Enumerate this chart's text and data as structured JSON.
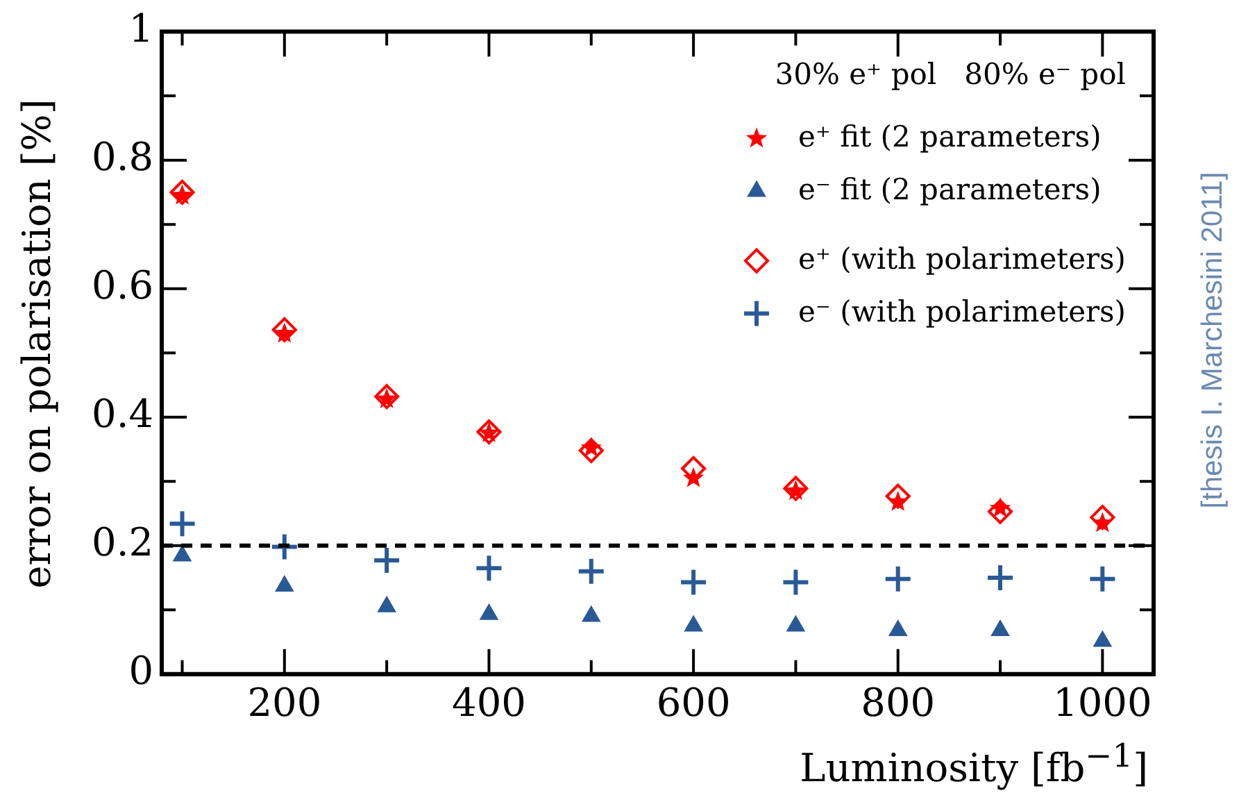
{
  "chart_data": {
    "type": "scatter",
    "xlabel": "Luminosity [fb$^{−1}$]",
    "ylabel": "error on polarisation [%]",
    "legend_title": "30% e⁺ pol   80% e⁻ pol",
    "xlim": [
      80,
      1050
    ],
    "xticks": [
      {
        "value": 100,
        "label": null
      },
      200,
      {
        "value": 300,
        "label": null
      },
      400,
      {
        "value": 500,
        "label": null
      },
      600,
      {
        "value": 700,
        "label": null
      },
      800,
      {
        "value": 900,
        "label": null
      },
      1000
    ],
    "ylim": [
      0,
      1
    ],
    "yticks": [
      0,
      {
        "value": 0.1,
        "label": null
      },
      0.2,
      {
        "value": 0.3,
        "label": null
      },
      0.4,
      {
        "value": 0.5,
        "label": null
      },
      0.6,
      {
        "value": 0.7,
        "label": null
      },
      0.8,
      {
        "value": 0.9,
        "label": null
      },
      1
    ],
    "x": [
      100,
      200,
      300,
      400,
      500,
      600,
      700,
      800,
      900,
      1000
    ],
    "series": [
      {
        "name": "e⁺ fit (2 parameters)",
        "color": "#ff0000",
        "marker": "star",
        "values": [
          0.745,
          0.53,
          0.428,
          0.375,
          0.352,
          0.305,
          0.285,
          0.268,
          0.258,
          0.235
        ]
      },
      {
        "name": "e⁻ fit (2 parameters)",
        "color": "#2a5a96",
        "marker": "triangle",
        "values": [
          0.184,
          0.137,
          0.105,
          0.093,
          0.09,
          0.075,
          0.075,
          0.068,
          0.068,
          0.051
        ]
      },
      {
        "name": "e⁺ (with polarimeters)",
        "color": "#ff0000",
        "marker": "diamond",
        "values": [
          0.75,
          0.536,
          0.432,
          0.377,
          0.348,
          0.32,
          0.289,
          0.277,
          0.253,
          0.244
        ]
      },
      {
        "name": "e⁻ (with polarimeters)",
        "color": "#2a5a96",
        "marker": "cross",
        "values": [
          0.234,
          0.198,
          0.177,
          0.165,
          0.16,
          0.143,
          0.143,
          0.148,
          0.15,
          0.148
        ]
      }
    ],
    "ref_lines": [
      {
        "axis": "y",
        "value": 0.2,
        "color": "#000000",
        "line_style": "dashed"
      }
    ],
    "annotations": [
      "[thesis I. Marchesini 2011]"
    ],
    "legend": "top right",
    "grid": false
  }
}
